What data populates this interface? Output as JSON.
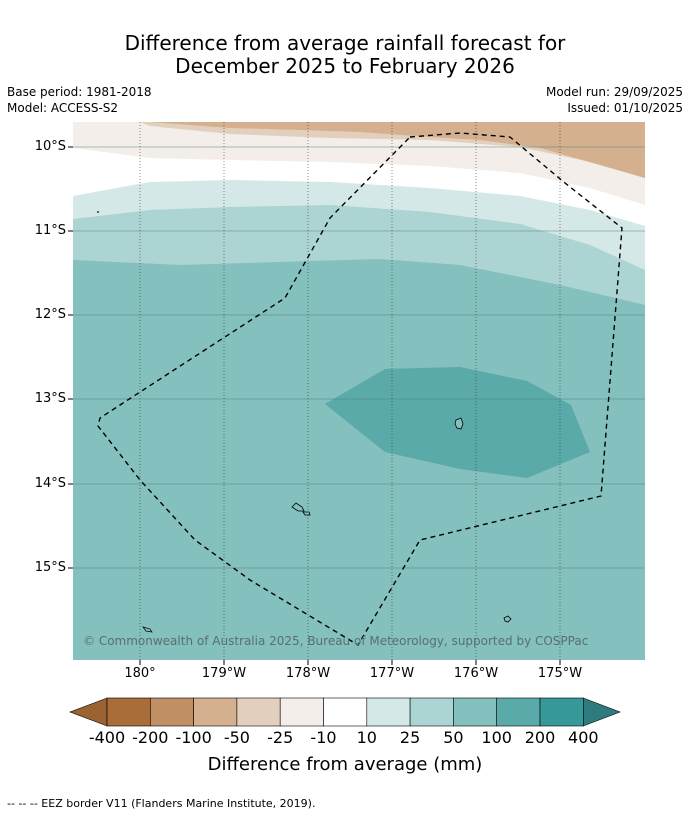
{
  "title": {
    "line1": "Difference from average rainfall forecast for",
    "line2": "December 2025 to February 2026"
  },
  "meta": {
    "base_period": "Base period: 1981-2018",
    "model": "Model: ACCESS-S2",
    "model_run": "Model run: 29/09/2025",
    "issued": "Issued: 01/10/2025"
  },
  "axes": {
    "lat_labels": [
      "10°S",
      "11°S",
      "12°S",
      "13°S",
      "14°S",
      "15°S"
    ],
    "lon_labels": [
      "180°",
      "179°W",
      "178°W",
      "177°W",
      "176°W",
      "175°W"
    ]
  },
  "colorbar": {
    "title": "Difference from average (mm)",
    "labels": [
      "-400",
      "-200",
      "-100",
      "-50",
      "-25",
      "-10",
      "10",
      "25",
      "50",
      "100",
      "200",
      "400"
    ],
    "colors": [
      "#a86d38",
      "#c09064",
      "#d4b08f",
      "#e3cfbd",
      "#f3eee9",
      "#ffffff",
      "#d4e8e7",
      "#acd4d3",
      "#83c0be",
      "#5aaaa9",
      "#35999a"
    ],
    "under_color": "#9a6331",
    "over_color": "#2d7b7e"
  },
  "copyright": "© Commonwealth of Australia 2025, Bureau of Meteorology, supported by COSPPac",
  "footer": "--  --  -- EEZ border V11 (Flanders Marine Institute, 2019)."
}
